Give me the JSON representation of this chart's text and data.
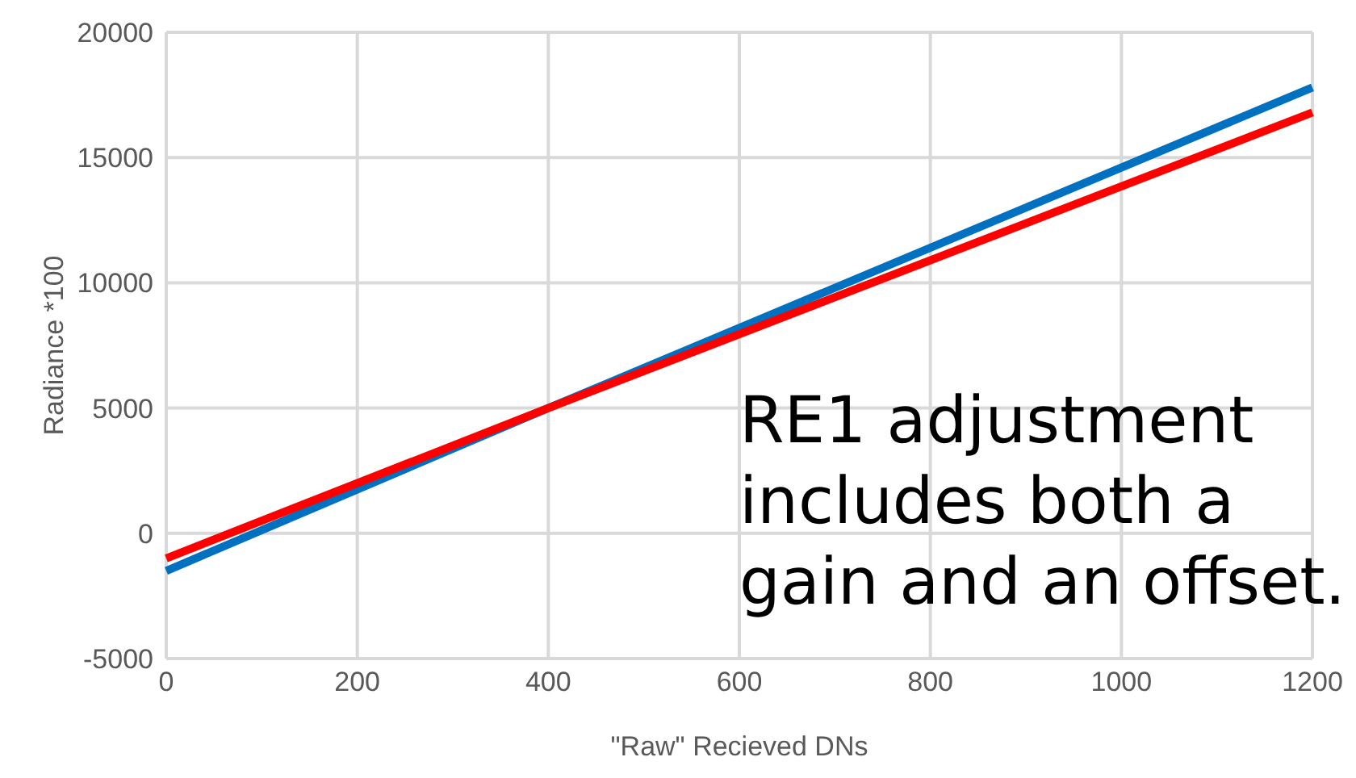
{
  "chart_data": {
    "type": "line",
    "xlabel": "\"Raw\" Recieved DNs",
    "ylabel": "Radiance *100",
    "annotations": [
      "RE1 adjustment includes both a gain and an offset."
    ],
    "series": [
      {
        "color": "#0070c0",
        "x": [
          0,
          400,
          1200
        ],
        "values": [
          -1500,
          5000,
          17800
        ]
      },
      {
        "color": "#ff0000",
        "x": [
          0,
          400,
          1200
        ],
        "values": [
          -1000,
          5000,
          16800
        ]
      }
    ],
    "xlim": [
      0,
      1200
    ],
    "xticks": [
      0,
      200,
      400,
      600,
      800,
      1000,
      1200
    ],
    "ylim": [
      -5000,
      20000
    ],
    "yticks": [
      -5000,
      0,
      5000,
      10000,
      15000,
      20000
    ],
    "grid": true,
    "legend": false,
    "marker": "none",
    "line_style": "solid"
  }
}
